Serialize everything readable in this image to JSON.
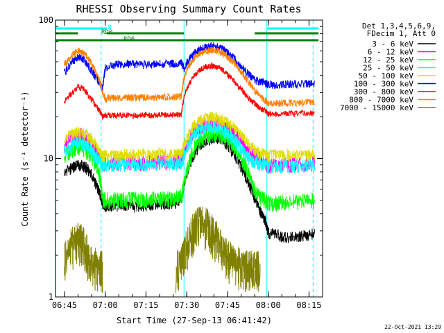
{
  "chart_data": {
    "type": "line",
    "title": "RHESSI Observing Summary Count Rates",
    "xlabel": "Start Time (27-Sep-13 06:41:42)",
    "ylabel": "Count Rate (s⁻¹ detector⁻¹)",
    "yscale": "log",
    "ylim": [
      1,
      100
    ],
    "xlim": [
      "06:41:42",
      "08:20:00"
    ],
    "x_ticks": [
      "06:45",
      "07:00",
      "07:15",
      "07:30",
      "07:45",
      "08:00",
      "08:15"
    ],
    "x_tick_minutes": [
      405,
      420,
      435,
      450,
      465,
      480,
      495
    ],
    "y_ticks": [
      1,
      10,
      100
    ],
    "y_tick_labels": [
      "1",
      "10",
      "100"
    ],
    "legend_title": [
      "Det 1,3,4,5,6,9,",
      "FDecim 1, Att 0"
    ],
    "legend_position": "right",
    "x_minutes": [
      405,
      408,
      410,
      412,
      414,
      416,
      418,
      419,
      420,
      423,
      425,
      428,
      431,
      434,
      437,
      440,
      443,
      446,
      448,
      449,
      451,
      453,
      455,
      457,
      459,
      461,
      463,
      465,
      467,
      469,
      471,
      473,
      475,
      477,
      479,
      480,
      483,
      486,
      490,
      494,
      497
    ],
    "series": [
      {
        "name": "3 - 6 keV",
        "color": "#000000",
        "values": [
          8.0,
          8.6,
          9.0,
          8.8,
          8.2,
          7.0,
          5.5,
          4.8,
          4.5,
          4.5,
          4.6,
          4.6,
          4.5,
          4.6,
          4.6,
          4.7,
          4.7,
          4.8,
          5.0,
          6.5,
          9.0,
          11.0,
          12.5,
          13.5,
          14.0,
          14.0,
          13.5,
          12.5,
          11.0,
          9.5,
          8.0,
          6.5,
          5.2,
          4.2,
          3.5,
          2.9,
          2.8,
          2.7,
          2.7,
          2.8,
          2.9
        ]
      },
      {
        "name": "6 - 12 keV",
        "color": "#ff00ff",
        "values": [
          12.5,
          14.0,
          15.0,
          14.5,
          13.5,
          12.0,
          10.5,
          9.0,
          9.2,
          9.4,
          9.3,
          9.2,
          9.3,
          9.3,
          9.4,
          9.5,
          9.4,
          9.6,
          9.7,
          11.0,
          14.0,
          16.0,
          17.0,
          17.5,
          17.8,
          17.5,
          17.0,
          16.5,
          15.5,
          14.0,
          12.5,
          11.0,
          10.5,
          10.0,
          9.5,
          8.8,
          8.9,
          9.0,
          9.0,
          9.1,
          9.2
        ]
      },
      {
        "name": "12 - 25 keV",
        "color": "#00ff00",
        "values": [
          10.5,
          11.5,
          12.0,
          11.8,
          11.0,
          9.5,
          7.5,
          5.0,
          5.0,
          5.0,
          5.1,
          5.0,
          5.1,
          5.0,
          5.1,
          5.2,
          5.1,
          5.2,
          5.3,
          6.5,
          9.5,
          12.0,
          13.5,
          14.5,
          15.0,
          15.0,
          14.5,
          13.5,
          12.5,
          11.0,
          9.5,
          7.5,
          6.0,
          5.2,
          5.0,
          4.8,
          4.8,
          4.9,
          4.9,
          4.9,
          5.0
        ]
      },
      {
        "name": "25 - 50 keV",
        "color": "#00ffff",
        "values": [
          11.5,
          12.5,
          13.0,
          12.8,
          12.0,
          10.5,
          9.5,
          9.0,
          9.0,
          9.0,
          9.1,
          9.0,
          9.1,
          9.0,
          9.1,
          9.2,
          9.1,
          9.2,
          9.3,
          10.5,
          13.0,
          15.0,
          16.0,
          16.5,
          16.8,
          16.5,
          16.0,
          15.0,
          14.0,
          12.5,
          11.0,
          10.0,
          9.5,
          9.2,
          9.0,
          8.8,
          8.8,
          8.9,
          8.9,
          8.9,
          9.0
        ]
      },
      {
        "name": "50 - 100 keV",
        "color": "#dddd00",
        "values": [
          14.0,
          15.0,
          15.5,
          15.2,
          14.5,
          13.0,
          11.5,
          10.5,
          10.5,
          10.6,
          10.6,
          10.7,
          10.6,
          10.7,
          10.6,
          10.8,
          10.7,
          10.8,
          10.9,
          12.5,
          15.5,
          17.5,
          19.0,
          19.5,
          20.0,
          19.8,
          19.0,
          18.0,
          17.0,
          15.5,
          14.0,
          12.5,
          11.5,
          11.0,
          10.8,
          10.5,
          10.5,
          10.6,
          10.6,
          10.6,
          10.7
        ]
      },
      {
        "name": "100 - 300 keV",
        "color": "#0000ff",
        "values": [
          42.0,
          50.0,
          54.0,
          52.0,
          46.0,
          40.0,
          35.0,
          32.0,
          45.0,
          47.0,
          48.0,
          48.0,
          48.0,
          48.0,
          48.0,
          48.5,
          48.5,
          49.0,
          49.0,
          45.0,
          52.0,
          58.0,
          62.0,
          64.0,
          65.0,
          64.0,
          62.0,
          58.0,
          54.0,
          49.0,
          44.0,
          40.0,
          37.0,
          36.0,
          35.0,
          34.0,
          34.0,
          34.5,
          34.5,
          34.5,
          35.0
        ]
      },
      {
        "name": "300 - 800 keV",
        "color": "#ff0000",
        "values": [
          26.0,
          30.0,
          33.0,
          32.0,
          28.0,
          25.0,
          22.0,
          20.0,
          20.5,
          20.5,
          20.5,
          20.6,
          20.5,
          20.6,
          20.5,
          20.7,
          20.6,
          20.8,
          20.8,
          28.0,
          35.0,
          40.0,
          44.0,
          46.0,
          47.0,
          46.0,
          44.0,
          40.0,
          37.0,
          33.0,
          30.0,
          27.0,
          25.0,
          23.0,
          22.0,
          21.0,
          21.0,
          21.2,
          21.2,
          21.3,
          21.5
        ]
      },
      {
        "name": "800 - 7000 keV",
        "color": "#ff8000",
        "values": [
          48.0,
          56.0,
          60.0,
          58.0,
          52.0,
          44.0,
          36.0,
          30.0,
          27.0,
          27.5,
          27.5,
          27.6,
          27.5,
          27.6,
          27.5,
          27.8,
          27.7,
          28.0,
          28.0,
          38.0,
          48.0,
          54.0,
          58.0,
          60.0,
          60.5,
          60.0,
          58.0,
          54.0,
          50.0,
          45.0,
          40.0,
          35.0,
          31.0,
          28.0,
          26.0,
          25.0,
          25.0,
          25.2,
          25.2,
          25.3,
          25.5
        ]
      },
      {
        "name": "7000 - 15000 keV",
        "color": "#808000",
        "values": [
          1.9,
          2.4,
          2.6,
          2.4,
          1.9,
          1.7,
          1.6,
          1.6,
          null,
          null,
          null,
          null,
          null,
          null,
          null,
          null,
          null,
          1.6,
          1.7,
          2.0,
          2.6,
          3.2,
          3.4,
          3.3,
          3.0,
          2.6,
          2.2,
          1.9,
          1.8,
          1.7,
          1.6,
          1.6,
          1.6,
          1.6,
          null,
          null,
          null,
          null,
          null,
          null,
          null
        ]
      }
    ],
    "flags": [
      {
        "name": "N",
        "color": "#00ffff"
      },
      {
        "name": "RD0",
        "color": "#008000"
      },
      {
        "name": "RD6",
        "color": "#008000"
      }
    ],
    "flag_bars": [
      {
        "flag": "N",
        "level": 1,
        "from": 401.7,
        "to": 420.5
      },
      {
        "flag": "N",
        "level": 1,
        "from": 479.5,
        "to": 498.5
      },
      {
        "flag": "RD0",
        "level": 2,
        "from": 401.7,
        "to": 410.0
      },
      {
        "flag": "RD0",
        "level": 2,
        "from": 420.5,
        "to": 449.0
      },
      {
        "flag": "RD0",
        "level": 2,
        "from": 475.0,
        "to": 498.5
      },
      {
        "flag": "RD6",
        "level": 3,
        "from": 401.7,
        "to": 498.5
      }
    ],
    "saa_dashed_minutes": [
      418.5,
      496.5
    ],
    "night_solid_minutes": [
      401.8,
      449.0,
      479.5
    ],
    "grid": false
  },
  "timestamp": "22-Oct-2021 13:29"
}
